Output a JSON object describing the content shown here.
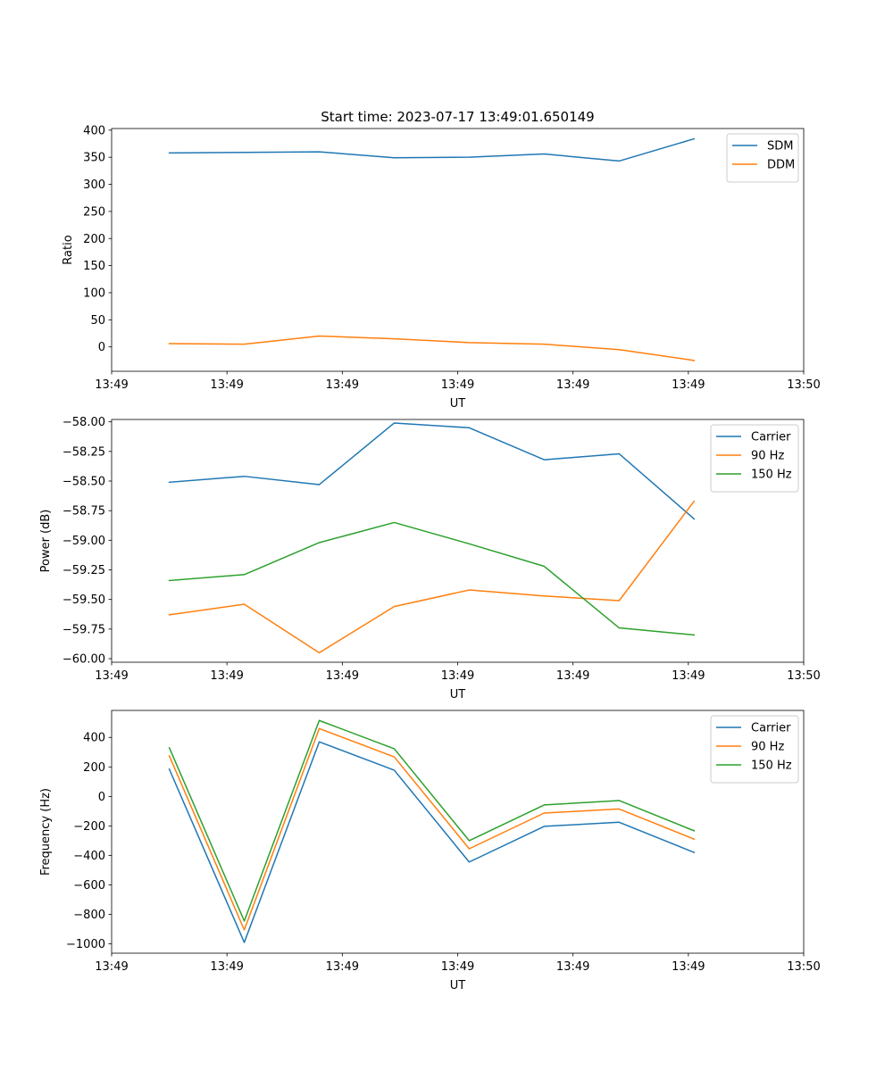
{
  "figure": {
    "title": "Start time: 2023-07-17 13:49:01.650149"
  },
  "chart_data": [
    {
      "type": "line",
      "title": "Start time: 2023-07-17 13:49:01.650149",
      "xlabel": "UT",
      "ylabel": "Ratio",
      "x": [
        0.5,
        1.15,
        1.8,
        2.45,
        3.1,
        3.75,
        4.4,
        5.05
      ],
      "xlim": [
        0,
        6
      ],
      "xticks": [
        0,
        1,
        2,
        3,
        4,
        5,
        6
      ],
      "xtick_labels": [
        "13:49",
        "13:49",
        "13:49",
        "13:49",
        "13:49",
        "13:49",
        "13:50"
      ],
      "ylim": [
        -45,
        403
      ],
      "yticks": [
        0,
        50,
        100,
        150,
        200,
        250,
        300,
        350,
        400
      ],
      "ytick_labels": [
        "0",
        "50",
        "100",
        "150",
        "200",
        "250",
        "300",
        "350",
        "400"
      ],
      "legend": "upper right",
      "series": [
        {
          "name": "SDM",
          "color": "#1f77b4",
          "values": [
            358,
            359,
            360,
            349,
            350,
            356,
            343,
            384
          ]
        },
        {
          "name": "DDM",
          "color": "#ff7f0e",
          "values": [
            6,
            5,
            20,
            15,
            8,
            5,
            -5,
            -25
          ]
        }
      ]
    },
    {
      "type": "line",
      "xlabel": "UT",
      "ylabel": "Power (dB)",
      "x": [
        0.5,
        1.15,
        1.8,
        2.45,
        3.1,
        3.75,
        4.4,
        5.05
      ],
      "xlim": [
        0,
        6
      ],
      "xticks": [
        0,
        1,
        2,
        3,
        4,
        5,
        6
      ],
      "xtick_labels": [
        "13:49",
        "13:49",
        "13:49",
        "13:49",
        "13:49",
        "13:49",
        "13:50"
      ],
      "ylim": [
        -60.03,
        -57.98
      ],
      "yticks": [
        -60.0,
        -59.75,
        -59.5,
        -59.25,
        -59.0,
        -58.75,
        -58.5,
        -58.25,
        -58.0
      ],
      "ytick_labels": [
        "−60.00",
        "−59.75",
        "−59.50",
        "−59.25",
        "−59.00",
        "−58.75",
        "−58.50",
        "−58.25",
        "−58.00"
      ],
      "legend": "upper right",
      "series": [
        {
          "name": "Carrier",
          "color": "#1f77b4",
          "values": [
            -58.51,
            -58.46,
            -58.53,
            -58.01,
            -58.05,
            -58.32,
            -58.27,
            -58.82
          ]
        },
        {
          "name": "90 Hz",
          "color": "#ff7f0e",
          "values": [
            -59.63,
            -59.54,
            -59.95,
            -59.56,
            -59.42,
            -59.47,
            -59.51,
            -58.67
          ]
        },
        {
          "name": "150 Hz",
          "color": "#2ca02c",
          "values": [
            -59.34,
            -59.29,
            -59.02,
            -58.85,
            -59.03,
            -59.22,
            -59.74,
            -59.8
          ]
        }
      ]
    },
    {
      "type": "line",
      "xlabel": "UT",
      "ylabel": "Frequency (Hz)",
      "x": [
        0.5,
        1.15,
        1.8,
        2.45,
        3.1,
        3.75,
        4.4,
        5.05
      ],
      "xlim": [
        0,
        6
      ],
      "xticks": [
        0,
        1,
        2,
        3,
        4,
        5,
        6
      ],
      "xtick_labels": [
        "13:49",
        "13:49",
        "13:49",
        "13:49",
        "13:49",
        "13:49",
        "13:50"
      ],
      "ylim": [
        -1063,
        583
      ],
      "yticks": [
        -1000,
        -800,
        -600,
        -400,
        -200,
        0,
        200,
        400
      ],
      "ytick_labels": [
        "−1000",
        "−800",
        "−600",
        "−400",
        "−200",
        "0",
        "200",
        "400"
      ],
      "legend": "upper right",
      "series": [
        {
          "name": "Carrier",
          "color": "#1f77b4",
          "values": [
            185,
            -990,
            370,
            178,
            -445,
            -203,
            -175,
            -380
          ]
        },
        {
          "name": "90 Hz",
          "color": "#ff7f0e",
          "values": [
            275,
            -905,
            460,
            268,
            -355,
            -113,
            -85,
            -290
          ]
        },
        {
          "name": "150 Hz",
          "color": "#2ca02c",
          "values": [
            330,
            -845,
            515,
            323,
            -300,
            -58,
            -28,
            -233
          ]
        }
      ]
    }
  ]
}
